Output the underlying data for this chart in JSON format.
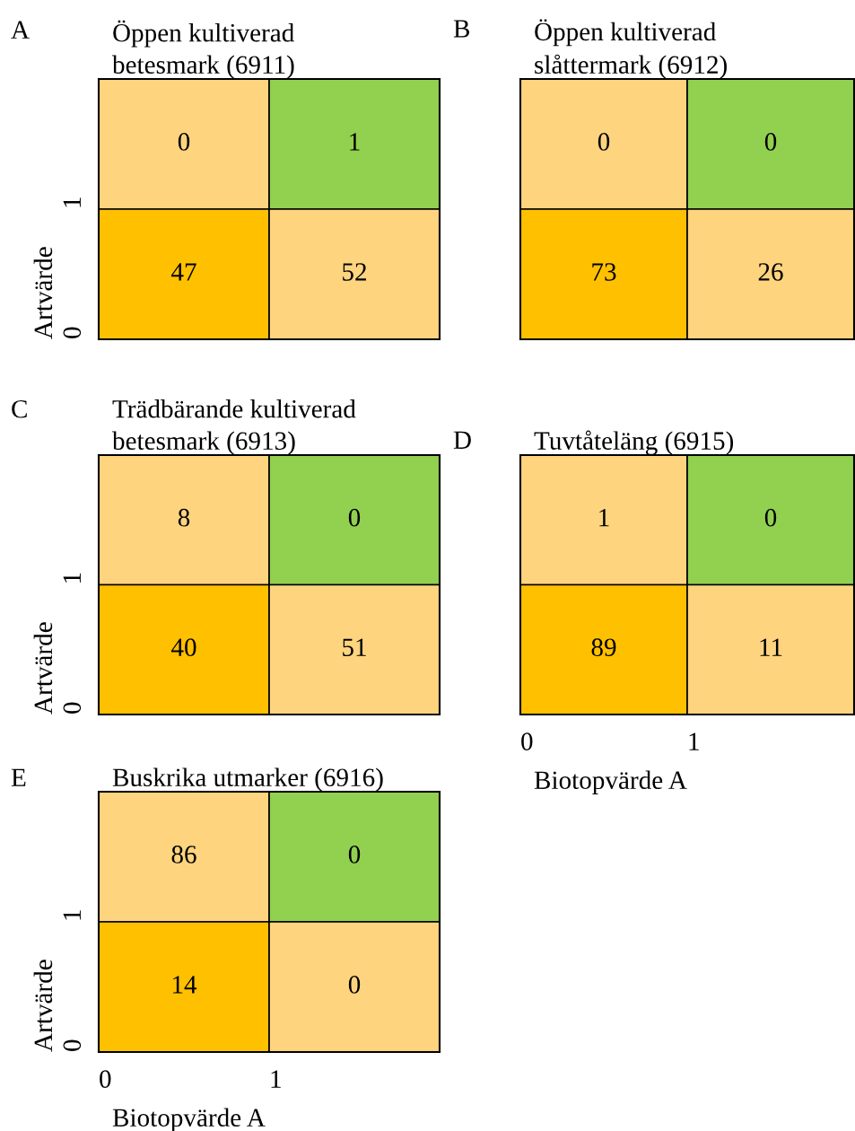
{
  "chart_data": [
    {
      "type": "heatmap",
      "data_labels": true,
      "title": "Öppen kultiverad\nbetesmark (6911)",
      "annotations": [
        "A"
      ],
      "ylabel": "Artvärde",
      "tick_labels": "y",
      "categories": [
        "0",
        "1"
      ],
      "y_categories": [
        "1",
        "0"
      ],
      "cells": [
        [
          0,
          1
        ],
        [
          47,
          52
        ]
      ],
      "colors": [
        [
          "#ffd47f",
          "#92d050"
        ],
        [
          "#ffc000",
          "#ffd47f"
        ]
      ]
    },
    {
      "type": "heatmap",
      "data_labels": true,
      "title": "Öppen kultiverad\nslåttermark (6912)",
      "annotations": [
        "B"
      ],
      "tick_labels": false,
      "categories": [
        "0",
        "1"
      ],
      "y_categories": [
        "1",
        "0"
      ],
      "cells": [
        [
          0,
          0
        ],
        [
          73,
          26
        ]
      ],
      "colors": [
        [
          "#ffd47f",
          "#92d050"
        ],
        [
          "#ffc000",
          "#ffd47f"
        ]
      ]
    },
    {
      "type": "heatmap",
      "data_labels": true,
      "title": "Trädbärande kultiverad\nbetesmark (6913)",
      "annotations": [
        "C"
      ],
      "ylabel": "Artvärde",
      "tick_labels": "y",
      "categories": [
        "0",
        "1"
      ],
      "y_categories": [
        "1",
        "0"
      ],
      "cells": [
        [
          8,
          0
        ],
        [
          40,
          51
        ]
      ],
      "colors": [
        [
          "#ffd47f",
          "#92d050"
        ],
        [
          "#ffc000",
          "#ffd47f"
        ]
      ]
    },
    {
      "type": "heatmap",
      "data_labels": true,
      "title": "Tuvtåteläng (6915)",
      "annotations": [
        "D"
      ],
      "xlabel": "Biotopvärde A",
      "tick_labels": "x",
      "categories": [
        "0",
        "1"
      ],
      "y_categories": [
        "1",
        "0"
      ],
      "cells": [
        [
          1,
          0
        ],
        [
          89,
          11
        ]
      ],
      "colors": [
        [
          "#ffd47f",
          "#92d050"
        ],
        [
          "#ffc000",
          "#ffd47f"
        ]
      ]
    },
    {
      "type": "heatmap",
      "data_labels": true,
      "title": "Buskrika utmarker (6916)",
      "annotations": [
        "E"
      ],
      "xlabel": "Biotopvärde A",
      "ylabel": "Artvärde",
      "categories": [
        "0",
        "1"
      ],
      "y_categories": [
        "1",
        "0"
      ],
      "cells": [
        [
          86,
          0
        ],
        [
          14,
          0
        ]
      ],
      "colors": [
        [
          "#ffd47f",
          "#92d050"
        ],
        [
          "#ffc000",
          "#ffd47f"
        ]
      ]
    }
  ]
}
